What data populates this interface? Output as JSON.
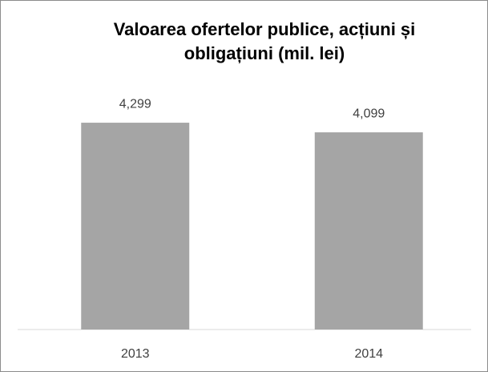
{
  "chart_data": {
    "type": "bar",
    "title": "Valoarea ofertelor publice, acțiuni și obligațiuni (mil. lei)",
    "categories": [
      "2013",
      "2014"
    ],
    "values": [
      4299,
      4099
    ],
    "value_labels": [
      "4,299",
      "4,099"
    ],
    "color": "#a5a5a5",
    "ylim": [
      0,
      5000
    ]
  }
}
